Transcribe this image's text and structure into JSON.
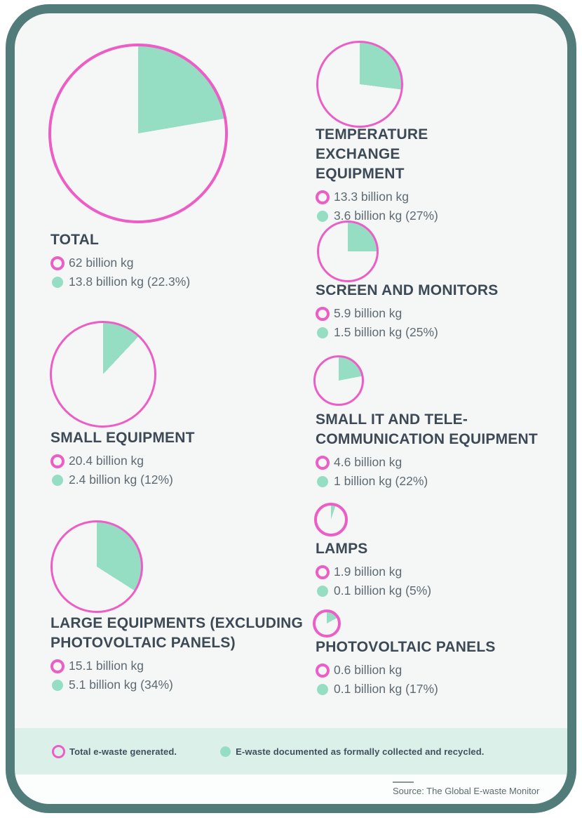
{
  "colors": {
    "generated_ring": "#ec5ec6",
    "recycled_fill": "#96dec3",
    "frame_border": "#527c79",
    "legend_strip_bg": "#dcf0ea",
    "page_bg": "#f5f7f6",
    "heading_text": "#3d4a56",
    "value_text": "#5e6a72"
  },
  "chart_data": {
    "type": "pie",
    "unit": "billion kg",
    "description": "Nested pie charts: pink ring = total e-waste generated; teal wedge (clockwise from 12 o'clock) = share formally collected and recycled. Circle area scales with total.",
    "categories": [
      {
        "title": "TOTAL",
        "generated_label": "62 billion kg",
        "generated_value": 62,
        "recycled_label": "13.8 billion kg (22.3%)",
        "recycled_value": 13.8,
        "recycled_pct": 22.3
      },
      {
        "title": "TEMPERATURE EXCHANGE EQUIPMENT",
        "generated_label": "13.3 billion kg",
        "generated_value": 13.3,
        "recycled_label": "3.6 billion kg (27%)",
        "recycled_value": 3.6,
        "recycled_pct": 27
      },
      {
        "title": "SCREEN AND MONITORS",
        "generated_label": "5.9 billion kg",
        "generated_value": 5.9,
        "recycled_label": "1.5 billion kg (25%)",
        "recycled_value": 1.5,
        "recycled_pct": 25
      },
      {
        "title": "SMALL EQUIPMENT",
        "generated_label": "20.4 billion kg",
        "generated_value": 20.4,
        "recycled_label": "2.4 billion kg (12%)",
        "recycled_value": 2.4,
        "recycled_pct": 12
      },
      {
        "title": "SMALL IT AND TELE-COMMUNICATION EQUIPMENT",
        "generated_label": "4.6 billion kg",
        "generated_value": 4.6,
        "recycled_label": "1 billion kg (22%)",
        "recycled_value": 1,
        "recycled_pct": 22
      },
      {
        "title": "LAMPS",
        "generated_label": "1.9 billion kg",
        "generated_value": 1.9,
        "recycled_label": "0.1 billion kg (5%)",
        "recycled_value": 0.1,
        "recycled_pct": 5
      },
      {
        "title": "LARGE EQUIPMENTS (EXCLUDING PHOTOVOLTAIC PANELS)",
        "generated_label": "15.1 billion kg",
        "generated_value": 15.1,
        "recycled_label": "5.1 billion kg (34%)",
        "recycled_value": 5.1,
        "recycled_pct": 34
      },
      {
        "title": "PHOTOVOLTAIC PANELS",
        "generated_label": "0.6 billion kg",
        "generated_value": 0.6,
        "recycled_label": "0.1 billion kg (17%)",
        "recycled_value": 0.1,
        "recycled_pct": 17
      }
    ]
  },
  "legend": {
    "generated": "Total e-waste generated.",
    "recycled": "E-waste documented as formally collected and recycled."
  },
  "source": {
    "label": "Source: The Global E-waste Monitor"
  }
}
